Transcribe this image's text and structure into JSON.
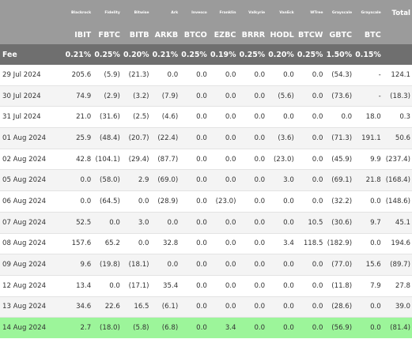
{
  "issuers": [
    "Blackrock",
    "Fidelity",
    "Bitwise",
    "Ark",
    "Invesco",
    "Franklin",
    "Valkyrie",
    "VanEck",
    "WTree",
    "Grayscale",
    "Grayscale"
  ],
  "total_label": "Total",
  "tickers": [
    "IBIT",
    "FBTC",
    "BITB",
    "ARKB",
    "BTCO",
    "EZBC",
    "BRRR",
    "HODL",
    "BTCW",
    "GBTC",
    "BTC"
  ],
  "fee_label": "Fee",
  "fees": [
    "0.21%",
    "0.25%",
    "0.20%",
    "0.21%",
    "0.25%",
    "0.19%",
    "0.25%",
    "0.20%",
    "0.25%",
    "1.50%",
    "0.15%",
    ""
  ],
  "rows": [
    {
      "date": "29 Jul 2024",
      "values": [
        "205.6",
        "(5.9)",
        "(21.3)",
        "0.0",
        "0.0",
        "0.0",
        "0.0",
        "0.0",
        "0.0",
        "(54.3)",
        "-",
        "124.1"
      ]
    },
    {
      "date": "30 Jul 2024",
      "values": [
        "74.9",
        "(2.9)",
        "(3.2)",
        "(7.9)",
        "0.0",
        "0.0",
        "0.0",
        "(5.6)",
        "0.0",
        "(73.6)",
        "-",
        "(18.3)"
      ]
    },
    {
      "date": "31 Jul 2024",
      "values": [
        "21.0",
        "(31.6)",
        "(2.5)",
        "(4.6)",
        "0.0",
        "0.0",
        "0.0",
        "0.0",
        "0.0",
        "0.0",
        "18.0",
        "0.3"
      ]
    },
    {
      "date": "01 Aug 2024",
      "values": [
        "25.9",
        "(48.4)",
        "(20.7)",
        "(22.4)",
        "0.0",
        "0.0",
        "0.0",
        "(3.6)",
        "0.0",
        "(71.3)",
        "191.1",
        "50.6"
      ]
    },
    {
      "date": "02 Aug 2024",
      "values": [
        "42.8",
        "(104.1)",
        "(29.4)",
        "(87.7)",
        "0.0",
        "0.0",
        "0.0",
        "(23.0)",
        "0.0",
        "(45.9)",
        "9.9",
        "(237.4)"
      ]
    },
    {
      "date": "05 Aug 2024",
      "values": [
        "0.0",
        "(58.0)",
        "2.9",
        "(69.0)",
        "0.0",
        "0.0",
        "0.0",
        "3.0",
        "0.0",
        "(69.1)",
        "21.8",
        "(168.4)"
      ]
    },
    {
      "date": "06 Aug 2024",
      "values": [
        "0.0",
        "(64.5)",
        "0.0",
        "(28.9)",
        "0.0",
        "(23.0)",
        "0.0",
        "0.0",
        "0.0",
        "(32.2)",
        "0.0",
        "(148.6)"
      ]
    },
    {
      "date": "07 Aug 2024",
      "values": [
        "52.5",
        "0.0",
        "3.0",
        "0.0",
        "0.0",
        "0.0",
        "0.0",
        "0.0",
        "10.5",
        "(30.6)",
        "9.7",
        "45.1"
      ]
    },
    {
      "date": "08 Aug 2024",
      "values": [
        "157.6",
        "65.2",
        "0.0",
        "32.8",
        "0.0",
        "0.0",
        "0.0",
        "3.4",
        "118.5",
        "(182.9)",
        "0.0",
        "194.6"
      ]
    },
    {
      "date": "09 Aug 2024",
      "values": [
        "9.6",
        "(19.8)",
        "(18.1)",
        "0.0",
        "0.0",
        "0.0",
        "0.0",
        "0.0",
        "0.0",
        "(77.0)",
        "15.6",
        "(89.7)"
      ]
    },
    {
      "date": "12 Aug 2024",
      "values": [
        "13.4",
        "0.0",
        "(17.1)",
        "35.4",
        "0.0",
        "0.0",
        "0.0",
        "0.0",
        "0.0",
        "(11.8)",
        "7.9",
        "27.8"
      ]
    },
    {
      "date": "13 Aug 2024",
      "values": [
        "34.6",
        "22.6",
        "16.5",
        "(6.1)",
        "0.0",
        "0.0",
        "0.0",
        "0.0",
        "0.0",
        "(28.6)",
        "0.0",
        "39.0"
      ]
    },
    {
      "date": "14 Aug 2024",
      "values": [
        "2.7",
        "(18.0)",
        "(5.8)",
        "(6.8)",
        "0.0",
        "3.4",
        "0.0",
        "0.0",
        "0.0",
        "(56.9)",
        "0.0",
        "(81.4)"
      ],
      "highlighted": true
    }
  ],
  "colors": {
    "header_bg": "#9b9b9b",
    "fee_bg": "#6f6f6f",
    "negative": "#e0201f",
    "highlight": "#9cf59a"
  }
}
